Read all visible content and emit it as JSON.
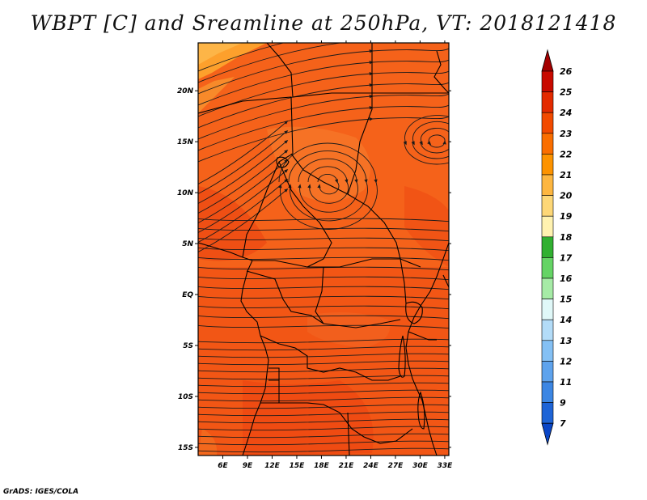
{
  "title": "WBPT [C] and Sreamline at 250hPa, VT: 2018121418",
  "credit": "GrADS: IGES/COLA",
  "map": {
    "lon_labels": [
      "6E",
      "9E",
      "12E",
      "15E",
      "18E",
      "21E",
      "24E",
      "27E",
      "30E",
      "33E"
    ],
    "lat_labels": [
      "20N",
      "15N",
      "10N",
      "5N",
      "EQ",
      "5S",
      "10S",
      "15S"
    ],
    "lon_values": [
      6,
      9,
      12,
      15,
      18,
      21,
      24,
      27,
      30,
      33
    ],
    "lat_values": [
      20,
      15,
      10,
      5,
      0,
      -5,
      -10,
      -15
    ],
    "lon_range": [
      3,
      33.5
    ],
    "lat_range": [
      -15.8,
      24.7
    ],
    "field": "WBPT",
    "level": "250hPa",
    "valid_time": "2018121418"
  },
  "colorbar": {
    "levels": [
      "26",
      "25",
      "24",
      "23",
      "22",
      "21",
      "20",
      "19",
      "18",
      "17",
      "16",
      "15",
      "14",
      "13",
      "12",
      "11",
      "9",
      "7"
    ],
    "colors": [
      "#a50000",
      "#c80a00",
      "#e32a00",
      "#f24a00",
      "#fa6e00",
      "#fd9300",
      "#fdb640",
      "#fdd777",
      "#fff2b0",
      "#31b031",
      "#65d465",
      "#a6eba6",
      "#e0f8f8",
      "#b3dcf8",
      "#84c0f4",
      "#5ea3ed",
      "#3c86e3",
      "#1e64d6",
      "#0a46c6"
    ]
  },
  "colors": {
    "dominant_field": "#f5621a",
    "warm_patches": "#ef4f14",
    "cool_patches": "#f88a2a",
    "streamline": "#1a1a1a",
    "coastline": "#000000"
  }
}
